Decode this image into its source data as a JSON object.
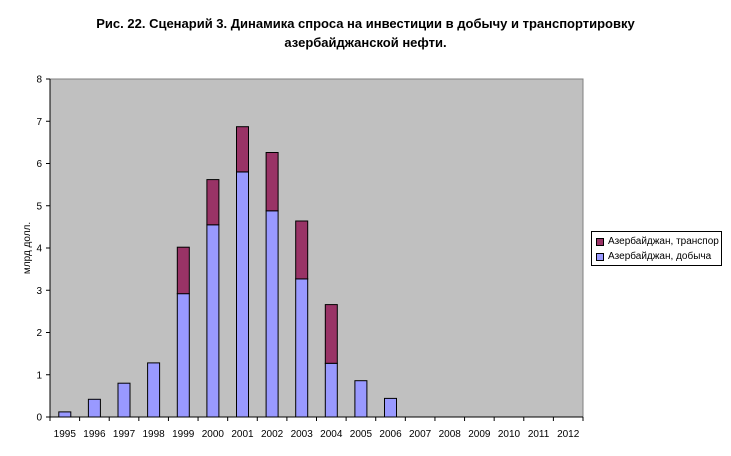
{
  "chart_data": {
    "type": "bar",
    "stacked": true,
    "title_lines": [
      "Рис. 22. Сценарий 3. Динамика спроса на инвестиции в добычу и транспортировку",
      "азербайджанской нефти."
    ],
    "ylabel": "млрд долл.",
    "xlabel": "",
    "ylim": [
      0,
      8
    ],
    "yticks": [
      "0",
      "1",
      "2",
      "3",
      "4",
      "5",
      "6",
      "7",
      "8"
    ],
    "categories": [
      "1995",
      "1996",
      "1997",
      "1998",
      "1999",
      "2000",
      "2001",
      "2002",
      "2003",
      "2004",
      "2005",
      "2006",
      "2007",
      "2008",
      "2009",
      "2010",
      "2011",
      "2012"
    ],
    "series": [
      {
        "name": "Азербайджан, добыча",
        "color": "#9999ff",
        "values": [
          0.12,
          0.42,
          0.8,
          1.28,
          2.92,
          4.55,
          5.8,
          4.88,
          3.27,
          1.27,
          0.86,
          0.44,
          0,
          0,
          0,
          0,
          0,
          0
        ]
      },
      {
        "name": "Азербайджан, транспорт",
        "color": "#993366",
        "values": [
          0,
          0,
          0,
          0,
          1.1,
          1.07,
          1.07,
          1.38,
          1.37,
          1.39,
          0,
          0,
          0,
          0,
          0,
          0,
          0,
          0
        ]
      }
    ],
    "plot_background": "#c0c0c0",
    "grid": false,
    "legend_position": "right"
  },
  "legend": {
    "items": [
      {
        "label": "Азербайджан, транспор",
        "color": "#993366"
      },
      {
        "label": "Азербайджан, добыча",
        "color": "#9999ff"
      }
    ]
  }
}
